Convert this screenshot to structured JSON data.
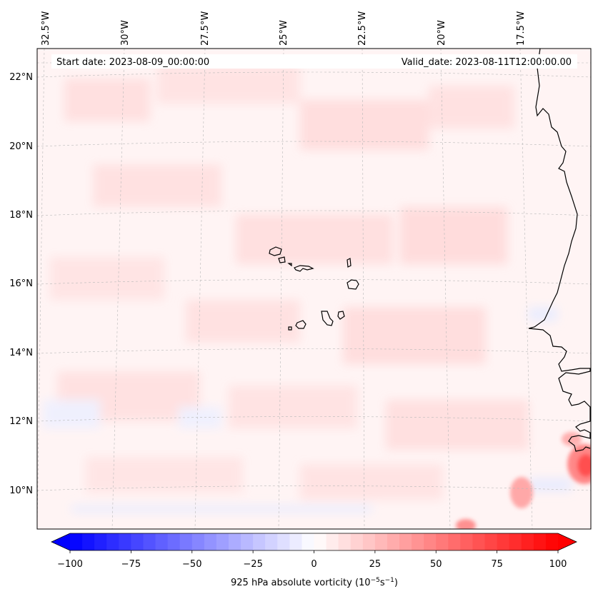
{
  "start_date_label": "Start date: 2023-08-09_00:00:00",
  "valid_date_label": "Valid_date: 2023-08-11T12:00:00.00",
  "longitude_ticks": [
    "32.5°W",
    "30°W",
    "27.5°W",
    "25°W",
    "22.5°W",
    "20°W",
    "17.5°W"
  ],
  "latitude_ticks": [
    "22°N",
    "20°N",
    "18°N",
    "16°N",
    "14°N",
    "12°N",
    "10°N"
  ],
  "colorbar": {
    "label_main": "925 hPa absolute vorticity (10",
    "exp1": "−5",
    "mid": "s",
    "exp2": "−1",
    "close": ")",
    "ticks": [
      "−100",
      "−75",
      "−50",
      "−25",
      "0",
      "25",
      "50",
      "75",
      "100"
    ],
    "min": -100,
    "max": 100,
    "neg_color": "#0000ff",
    "pos_color": "#ff0000",
    "zero_color": "#ffffff"
  },
  "colors": {
    "coast": "#000000",
    "grid": "#b0b0b0",
    "background_tint": "#fff3f3"
  }
}
